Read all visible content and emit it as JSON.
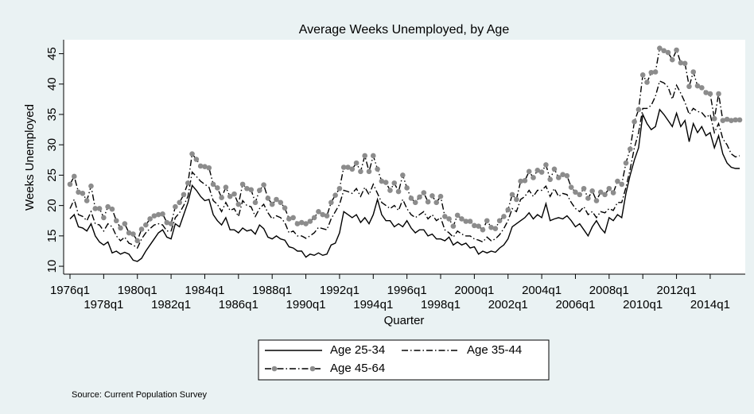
{
  "chart_data": {
    "type": "line",
    "title": "Average Weeks Unemployed, by Age",
    "x_label": "Quarter",
    "y_label": "Weeks Unemployed",
    "note": "Source: Current Population Survey",
    "categories": [
      "1976q1",
      null,
      null,
      null,
      null,
      null,
      null,
      null,
      "1978q1",
      null,
      null,
      null,
      null,
      null,
      null,
      null,
      "1980q1",
      null,
      null,
      null,
      null,
      null,
      null,
      null,
      "1982q1",
      null,
      null,
      null,
      null,
      null,
      null,
      null,
      "1984q1",
      null,
      null,
      null,
      null,
      null,
      null,
      null,
      "1986q1",
      null,
      null,
      null,
      null,
      null,
      null,
      null,
      "1988q1",
      null,
      null,
      null,
      null,
      null,
      null,
      null,
      "1990q1",
      null,
      null,
      null,
      null,
      null,
      null,
      null,
      "1992q1",
      null,
      null,
      null,
      null,
      null,
      null,
      null,
      "1994q1",
      null,
      null,
      null,
      null,
      null,
      null,
      null,
      "1996q1",
      null,
      null,
      null,
      null,
      null,
      null,
      null,
      "1998q1",
      null,
      null,
      null,
      null,
      null,
      null,
      null,
      "2000q1",
      null,
      null,
      null,
      null,
      null,
      null,
      null,
      "2002q1",
      null,
      null,
      null,
      null,
      null,
      null,
      null,
      "2004q1",
      null,
      null,
      null,
      null,
      null,
      null,
      null,
      "2006q1",
      null,
      null,
      null,
      null,
      null,
      null,
      null,
      "2008q1",
      null,
      null,
      null,
      null,
      null,
      null,
      null,
      "2010q1",
      null,
      null,
      null,
      null,
      null,
      null,
      null,
      "2012q1",
      null,
      null,
      null,
      null,
      null,
      null,
      null,
      "2014q1",
      null,
      null,
      null,
      null,
      null,
      null,
      null
    ],
    "ylim": [
      8.7,
      47.3
    ],
    "yticks": [
      10,
      15,
      20,
      25,
      30,
      35,
      40,
      45
    ],
    "grid": false,
    "series": [
      {
        "name": "Age 25-34",
        "color": "#000000",
        "style": "solid",
        "values": [
          17.8,
          18.5,
          16.5,
          16.3,
          15.8,
          17.0,
          15.0,
          14.0,
          13.5,
          14.0,
          12.2,
          12.5,
          12.0,
          12.3,
          12.0,
          11.0,
          10.8,
          11.3,
          12.5,
          13.5,
          14.5,
          15.5,
          16.0,
          14.8,
          14.5,
          17.0,
          16.5,
          18.5,
          20.5,
          23.3,
          22.5,
          21.5,
          20.8,
          21.0,
          18.5,
          17.5,
          16.8,
          18.0,
          16.0,
          16.0,
          15.5,
          16.3,
          15.8,
          16.0,
          15.3,
          16.8,
          16.2,
          14.8,
          14.5,
          15.0,
          14.5,
          14.3,
          13.2,
          13.0,
          12.5,
          12.5,
          11.5,
          12.0,
          11.8,
          12.2,
          11.8,
          12.0,
          13.5,
          13.8,
          15.5,
          19.0,
          18.5,
          18.0,
          18.5,
          17.2,
          18.0,
          17.0,
          18.5,
          21.0,
          18.5,
          17.5,
          17.5,
          16.5,
          17.0,
          16.5,
          17.5,
          16.3,
          15.5,
          16.0,
          16.0,
          15.0,
          15.3,
          14.5,
          14.5,
          14.2,
          14.8,
          13.5,
          14.0,
          13.5,
          13.8,
          13.0,
          13.2,
          12.0,
          12.5,
          12.2,
          12.5,
          12.3,
          13.0,
          13.5,
          14.5,
          16.5,
          17.0,
          17.5,
          18.0,
          18.8,
          17.8,
          18.5,
          18.0,
          20.3,
          17.5,
          17.8,
          18.0,
          17.8,
          18.3,
          17.5,
          16.5,
          17.0,
          16.0,
          15.0,
          16.5,
          17.5,
          16.3,
          15.5,
          18.0,
          17.5,
          18.5,
          18.0,
          22.0,
          25.0,
          27.5,
          29.5,
          35.0,
          33.5,
          32.5,
          33.0,
          35.8,
          35.0,
          34.0,
          33.0,
          35.2,
          33.0,
          34.0,
          30.5,
          33.5,
          32.0,
          33.0,
          31.5,
          32.0,
          29.5,
          31.5,
          28.5,
          27.0,
          26.3,
          26.1,
          26.1
        ]
      },
      {
        "name": "Age 35-44",
        "color": "#000000",
        "style": "dashdot",
        "values": [
          19.5,
          21.0,
          18.5,
          18.2,
          17.5,
          19.0,
          17.0,
          16.8,
          15.8,
          17.0,
          16.5,
          15.0,
          14.2,
          14.8,
          13.8,
          13.5,
          13.0,
          14.5,
          15.5,
          16.2,
          16.8,
          17.0,
          16.8,
          15.8,
          15.8,
          18.0,
          18.8,
          20.0,
          21.5,
          25.5,
          24.8,
          24.0,
          23.5,
          23.0,
          20.8,
          20.2,
          19.0,
          20.5,
          19.2,
          19.5,
          18.2,
          20.8,
          20.0,
          19.8,
          18.2,
          19.5,
          20.2,
          18.8,
          17.8,
          18.3,
          18.0,
          17.2,
          15.5,
          15.8,
          15.0,
          15.0,
          14.6,
          15.0,
          15.5,
          16.4,
          16.2,
          16.0,
          17.8,
          19.0,
          20.2,
          22.5,
          22.3,
          22.0,
          22.8,
          21.5,
          23.0,
          21.8,
          23.5,
          22.0,
          20.5,
          20.0,
          19.5,
          20.0,
          19.2,
          21.0,
          19.5,
          18.5,
          18.0,
          18.5,
          19.0,
          17.8,
          18.5,
          17.5,
          18.0,
          16.0,
          15.5,
          14.8,
          15.8,
          15.3,
          15.0,
          15.0,
          14.5,
          14.3,
          14.0,
          14.8,
          14.2,
          14.5,
          15.2,
          16.2,
          17.5,
          19.5,
          19.0,
          21.0,
          21.5,
          22.5,
          21.5,
          22.5,
          22.5,
          23.2,
          21.5,
          22.8,
          21.5,
          22.0,
          21.8,
          20.5,
          19.5,
          19.0,
          19.8,
          18.5,
          19.0,
          18.0,
          19.0,
          18.8,
          19.5,
          19.2,
          20.5,
          20.5,
          23.0,
          26.0,
          29.5,
          32.0,
          36.0,
          36.0,
          36.5,
          38.0,
          40.5,
          40.2,
          39.5,
          37.5,
          39.8,
          38.5,
          37.0,
          35.0,
          36.0,
          35.5,
          35.3,
          34.5,
          35.0,
          32.0,
          33.5,
          31.0,
          30.0,
          28.5,
          28.0,
          28.2
        ]
      },
      {
        "name": "Age 45-64",
        "color": "#000000",
        "style": "dashdot",
        "marker": "circle",
        "marker_color": "#8c8c8c",
        "values": [
          23.5,
          24.8,
          22.2,
          22.0,
          20.8,
          23.2,
          19.5,
          19.5,
          18.0,
          19.8,
          19.4,
          17.5,
          16.3,
          17.0,
          15.5,
          15.3,
          14.2,
          16.1,
          16.8,
          17.8,
          18.3,
          18.5,
          18.6,
          17.2,
          17.0,
          19.8,
          20.5,
          21.8,
          23.7,
          28.5,
          27.6,
          26.5,
          26.4,
          26.2,
          23.5,
          22.9,
          21.3,
          23.0,
          21.5,
          21.9,
          20.2,
          23.5,
          22.8,
          22.6,
          20.5,
          22.5,
          23.4,
          21.2,
          20.2,
          21.0,
          20.5,
          19.6,
          17.8,
          18.0,
          17.0,
          17.2,
          17.0,
          17.4,
          18.0,
          19.0,
          18.5,
          18.3,
          20.5,
          21.7,
          22.8,
          26.3,
          26.3,
          26.0,
          27.0,
          25.6,
          28.2,
          25.6,
          28.2,
          26.0,
          24.0,
          23.8,
          22.5,
          23.7,
          22.3,
          25.0,
          22.9,
          21.2,
          20.5,
          21.4,
          22.1,
          20.6,
          21.6,
          20.5,
          21.5,
          18.2,
          17.8,
          16.6,
          18.4,
          17.8,
          17.4,
          17.4,
          16.7,
          16.6,
          16.0,
          17.5,
          16.4,
          16.2,
          17.5,
          18.2,
          19.3,
          21.8,
          21.0,
          24.0,
          24.1,
          25.6,
          24.6,
          25.8,
          25.5,
          26.7,
          24.3,
          26.0,
          24.6,
          25.1,
          24.9,
          23.0,
          22.2,
          21.8,
          22.8,
          21.2,
          22.4,
          20.8,
          22.2,
          21.8,
          22.8,
          22.1,
          24.0,
          23.5,
          27.0,
          29.3,
          33.8,
          35.8,
          41.5,
          40.3,
          41.9,
          42.0,
          45.9,
          45.5,
          45.2,
          44.0,
          45.6,
          43.5,
          43.4,
          39.6,
          42.0,
          39.7,
          39.4,
          38.6,
          38.4,
          34.3,
          38.4,
          34.0,
          34.2,
          34.0,
          34.1,
          34.1
        ]
      }
    ]
  }
}
